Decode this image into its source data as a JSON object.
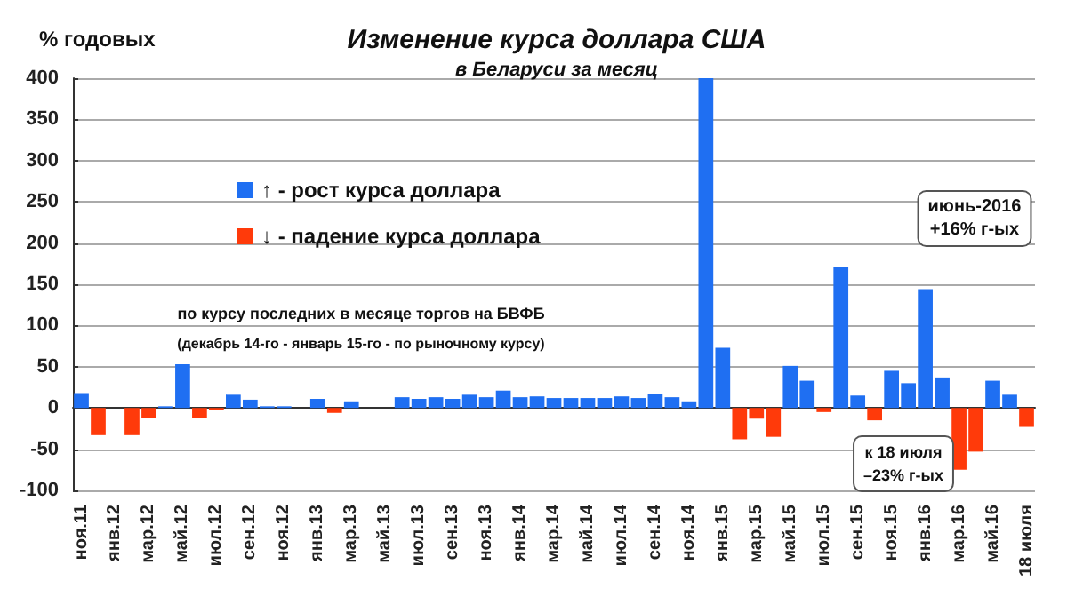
{
  "chart_data": {
    "type": "bar",
    "title": "Изменение курса доллара США",
    "subtitle": "в Беларуси за месяц",
    "ylabel": "% годовых",
    "categories": [
      "ноя.11",
      null,
      "янв.12",
      null,
      "мар.12",
      null,
      "май.12",
      null,
      "июл.12",
      null,
      "сен.12",
      null,
      "ноя.12",
      null,
      "янв.13",
      null,
      "мар.13",
      null,
      "май.13",
      null,
      "июл.13",
      null,
      "сен.13",
      null,
      "ноя.13",
      null,
      "янв.14",
      null,
      "мар.14",
      null,
      "май.14",
      null,
      "июл.14",
      null,
      "сен.14",
      null,
      "ноя.14",
      null,
      "янв.15",
      null,
      "мар.15",
      null,
      "май.15",
      null,
      "июл.15",
      null,
      "сен.15",
      null,
      "ноя.15",
      null,
      "янв.16",
      null,
      "мар.16",
      null,
      "май.16",
      null,
      "18 июля"
    ],
    "series": [
      {
        "name": "↑ - рост курса доллара",
        "color": "#1f6ff2",
        "values": [
          18,
          null,
          0,
          null,
          null,
          2,
          53,
          null,
          null,
          16,
          10,
          2,
          2,
          0,
          11,
          null,
          8,
          0,
          0,
          13,
          11,
          13,
          11,
          16,
          13,
          21,
          13,
          14,
          12,
          12,
          12,
          12,
          14,
          12,
          17,
          13,
          8,
          400,
          73,
          null,
          null,
          null,
          51,
          33,
          null,
          171,
          15,
          null,
          45,
          30,
          144,
          37,
          null,
          null,
          33,
          16,
          null
        ]
      },
      {
        "name": "↓ - падение курса доллара",
        "color": "#ff3a0a",
        "values": [
          null,
          -33,
          null,
          -33,
          -12,
          null,
          null,
          -12,
          -3,
          null,
          null,
          null,
          null,
          null,
          null,
          -6,
          null,
          null,
          null,
          null,
          null,
          null,
          null,
          null,
          null,
          null,
          null,
          null,
          null,
          null,
          null,
          null,
          null,
          null,
          null,
          null,
          null,
          null,
          null,
          -38,
          -13,
          -35,
          null,
          null,
          -5,
          null,
          null,
          -15,
          null,
          null,
          null,
          null,
          -75,
          -53,
          null,
          null,
          -23
        ]
      }
    ],
    "stacked": true,
    "ylim": [
      -100,
      400
    ],
    "yticks": [
      -100,
      -50,
      0,
      50,
      100,
      150,
      200,
      250,
      300,
      350,
      400
    ],
    "grid": "y",
    "legend": "top left",
    "annotations": [
      "по курсу последних в месяце торгов на БВФБ",
      "(декабрь 14-го - январь 15-го - по рыночному курсу)",
      "июнь-2016\n+16% г-ых",
      "к 18 июля\n–23% г-ых"
    ]
  }
}
